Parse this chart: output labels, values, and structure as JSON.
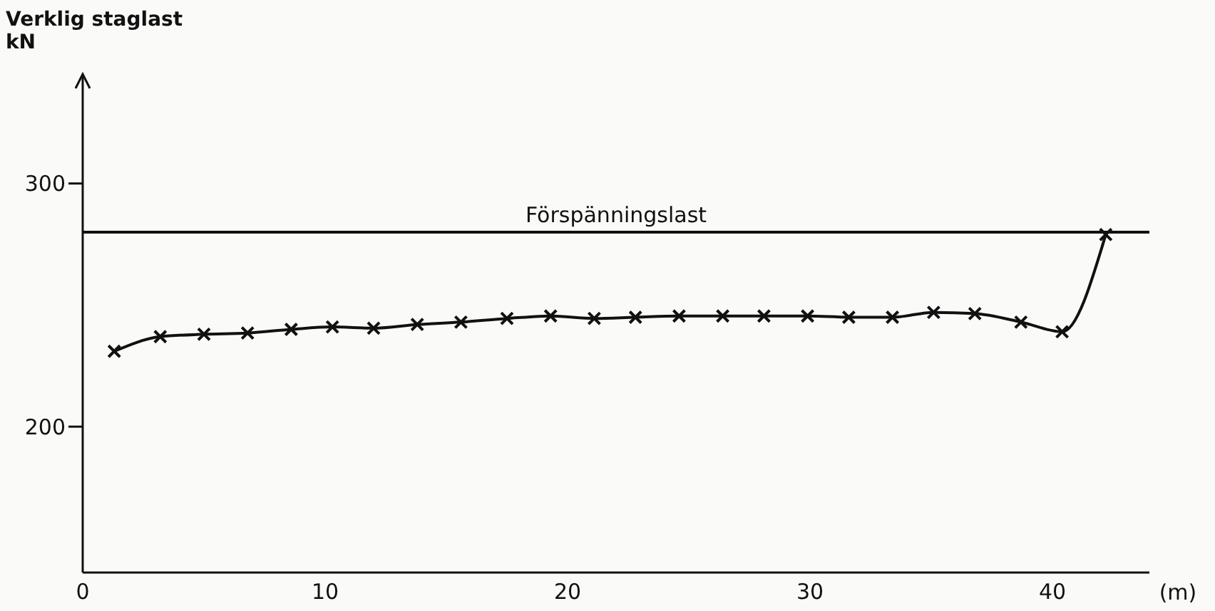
{
  "chart_data": {
    "type": "line",
    "ylabel": "Verklig staglast\nkN",
    "xlabel": "(m)",
    "x": [
      1.3,
      3.2,
      5.0,
      6.8,
      8.6,
      10.3,
      12.0,
      13.8,
      15.6,
      17.5,
      19.3,
      21.1,
      22.8,
      24.6,
      26.4,
      28.1,
      29.9,
      31.6,
      33.4,
      35.1,
      36.8,
      38.7,
      40.4,
      42.2
    ],
    "series": [
      {
        "color": "#111111",
        "values": [
          231,
          237,
          238,
          238.5,
          240,
          241,
          240.5,
          242,
          243,
          244.5,
          245.5,
          244.5,
          245,
          245.5,
          245.5,
          245.5,
          245.5,
          245,
          245,
          247,
          246.5,
          243,
          239,
          279
        ]
      }
    ],
    "xlim": [
      0,
      44
    ],
    "xticks": [
      0,
      10,
      20,
      30,
      40
    ],
    "ylim": [
      140,
      345
    ],
    "yticks": [
      200,
      300
    ],
    "ref_lines": [
      {
        "axis": "y",
        "value": 280,
        "label": "Förspänningslast",
        "color": "#111111"
      }
    ],
    "marker": "cross",
    "line_style": "solid",
    "grid": false,
    "legend": false
  }
}
